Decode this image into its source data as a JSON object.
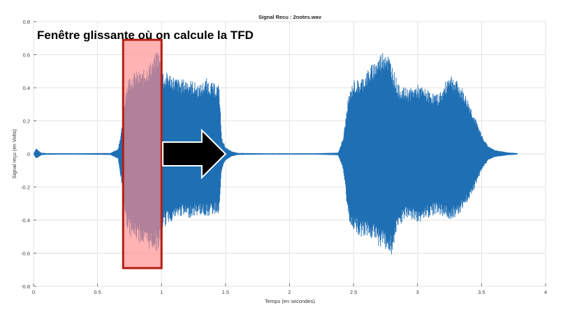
{
  "chart_data": {
    "type": "line",
    "title": "Signal Recu : 2notes.wav",
    "xlabel": "Temps (en secondes)",
    "ylabel": "Signal reçu (en Volts)",
    "xlim": [
      0,
      4
    ],
    "ylim": [
      -0.8,
      0.8
    ],
    "xticks": [
      0,
      0.5,
      1,
      1.5,
      2,
      2.5,
      3,
      3.5,
      4
    ],
    "xtick_labels": [
      "0",
      "0.5",
      "1",
      "1.5",
      "2",
      "2.5",
      "3",
      "3.5",
      "4"
    ],
    "yticks": [
      -0.8,
      -0.6,
      -0.4,
      -0.2,
      0,
      0.2,
      0.4,
      0.6,
      0.8
    ],
    "ytick_labels": [
      "-0.8",
      "-0.6",
      "-0.4",
      "-0.2",
      "0",
      "0.2",
      "0.4",
      "0.6",
      "0.8"
    ],
    "grid": true,
    "series_color": "#1f6fb4",
    "envelope": {
      "t": [
        0,
        0.02,
        0.04,
        0.06,
        0.1,
        0.3,
        0.6,
        0.66,
        0.7,
        0.72,
        0.75,
        0.8,
        0.85,
        0.9,
        0.95,
        0.97,
        1.0,
        1.02,
        1.05,
        1.1,
        1.15,
        1.2,
        1.25,
        1.3,
        1.35,
        1.4,
        1.45,
        1.47,
        1.5,
        1.55,
        1.6,
        1.8,
        2.0,
        2.2,
        2.38,
        2.42,
        2.46,
        2.5,
        2.55,
        2.6,
        2.65,
        2.7,
        2.75,
        2.8,
        2.85,
        2.9,
        2.95,
        3.0,
        3.05,
        3.1,
        3.15,
        3.2,
        3.25,
        3.3,
        3.35,
        3.4,
        3.45,
        3.5,
        3.55,
        3.6,
        3.7,
        3.78
      ],
      "upper": [
        0.0,
        0.035,
        0.02,
        0.008,
        0.005,
        0.004,
        0.006,
        0.03,
        0.2,
        0.4,
        0.48,
        0.5,
        0.5,
        0.55,
        0.6,
        0.65,
        0.55,
        0.48,
        0.5,
        0.47,
        0.45,
        0.46,
        0.44,
        0.42,
        0.46,
        0.43,
        0.42,
        0.1,
        0.04,
        0.015,
        0.006,
        0.004,
        0.004,
        0.004,
        0.008,
        0.1,
        0.35,
        0.45,
        0.45,
        0.5,
        0.55,
        0.6,
        0.65,
        0.55,
        0.42,
        0.4,
        0.4,
        0.42,
        0.4,
        0.38,
        0.36,
        0.4,
        0.5,
        0.45,
        0.4,
        0.32,
        0.22,
        0.12,
        0.05,
        0.025,
        0.01,
        0.005
      ],
      "lower": [
        0.0,
        -0.03,
        -0.02,
        -0.008,
        -0.005,
        -0.004,
        -0.006,
        -0.03,
        -0.25,
        -0.42,
        -0.5,
        -0.52,
        -0.55,
        -0.58,
        -0.58,
        -0.6,
        -0.52,
        -0.45,
        -0.42,
        -0.4,
        -0.38,
        -0.39,
        -0.38,
        -0.37,
        -0.38,
        -0.37,
        -0.36,
        -0.1,
        -0.04,
        -0.015,
        -0.006,
        -0.004,
        -0.004,
        -0.004,
        -0.008,
        -0.1,
        -0.4,
        -0.46,
        -0.5,
        -0.5,
        -0.52,
        -0.56,
        -0.58,
        -0.62,
        -0.45,
        -0.4,
        -0.4,
        -0.42,
        -0.4,
        -0.38,
        -0.36,
        -0.38,
        -0.4,
        -0.38,
        -0.34,
        -0.28,
        -0.2,
        -0.1,
        -0.04,
        -0.02,
        -0.008,
        -0.004
      ]
    },
    "annotations": {
      "window_label": "Fenêtre glissante où on calcule la TFD",
      "window": {
        "x_start": 0.7,
        "x_end": 1.0,
        "y_top": 0.69,
        "y_bottom": -0.69,
        "fill": "#ff8a8a",
        "stroke": "#b41e14"
      },
      "arrow": {
        "x_start": 1.01,
        "x_end": 1.5,
        "y": 0,
        "fill": "#000000",
        "stroke": "#ffffff"
      }
    }
  }
}
